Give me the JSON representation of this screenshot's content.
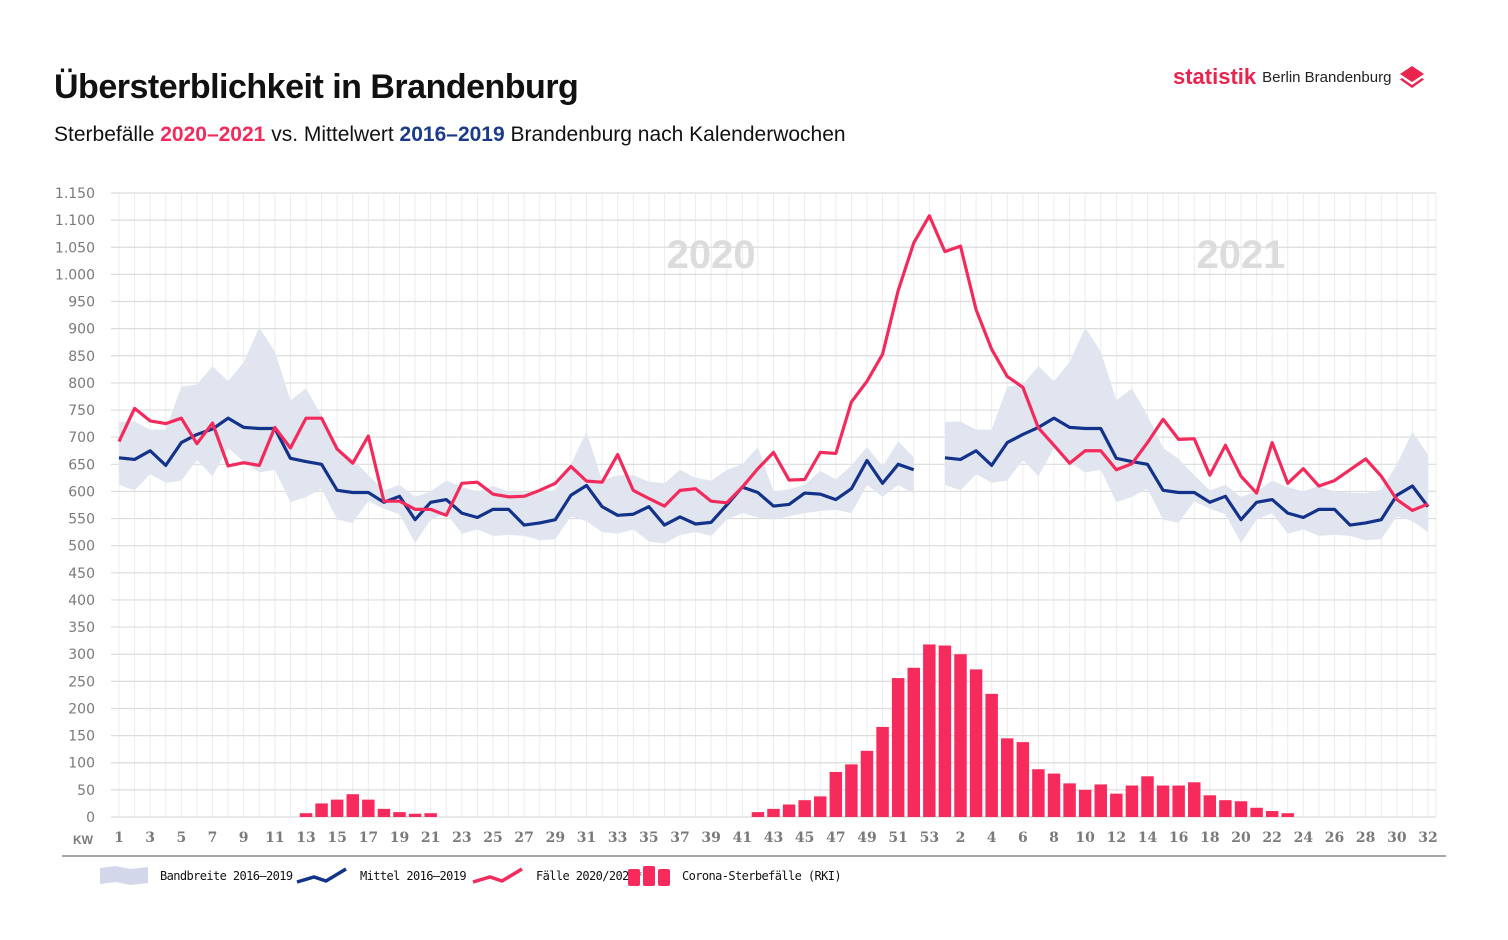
{
  "header": {
    "title": "Übersterblichkeit in Brandenburg",
    "subtitle_pre": "Sterbefälle ",
    "subtitle_years1": "2020–2021",
    "subtitle_mid": " vs. Mittelwert ",
    "subtitle_years2": "2016–2019",
    "subtitle_post": " Brandenburg nach Kalenderwochen"
  },
  "logo": {
    "brand": "statistik",
    "region": "Berlin Brandenburg",
    "icon": "layers-icon"
  },
  "colors": {
    "cases": "#f22b5c",
    "mean": "#13338a",
    "band": "#e1e5f0",
    "bars": "#f72a5c",
    "grid": "#e4e4e4"
  },
  "chart_data": {
    "type": "line",
    "title": "Übersterblichkeit in Brandenburg",
    "xlabel": "KW",
    "ylabel": "",
    "ylim": [
      0,
      1150
    ],
    "yticks": [
      0,
      50,
      100,
      150,
      200,
      250,
      300,
      350,
      400,
      450,
      500,
      550,
      600,
      650,
      700,
      750,
      800,
      850,
      900,
      950,
      1000,
      1050,
      1100,
      1150
    ],
    "ytick_labels": [
      "0",
      "50",
      "100",
      "150",
      "200",
      "250",
      "300",
      "350",
      "400",
      "450",
      "500",
      "550",
      "600",
      "650",
      "700",
      "750",
      "800",
      "850",
      "900",
      "950",
      "1.000",
      "1.050",
      "1.100",
      "1.150"
    ],
    "grid": true,
    "year_annotations": [
      {
        "text": "2020",
        "at_index": 38
      },
      {
        "text": "2021",
        "at_index": 72
      }
    ],
    "x_weeks": [
      1,
      2,
      3,
      4,
      5,
      6,
      7,
      8,
      9,
      10,
      11,
      12,
      13,
      14,
      15,
      16,
      17,
      18,
      19,
      20,
      21,
      22,
      23,
      24,
      25,
      26,
      27,
      28,
      29,
      30,
      31,
      32,
      33,
      34,
      35,
      36,
      37,
      38,
      39,
      40,
      41,
      42,
      43,
      44,
      45,
      46,
      47,
      48,
      49,
      50,
      51,
      52,
      53,
      1,
      2,
      3,
      4,
      5,
      6,
      7,
      8,
      9,
      10,
      11,
      12,
      13,
      14,
      15,
      16,
      17,
      18,
      19,
      20,
      21,
      22,
      23,
      24,
      25,
      26,
      27,
      28,
      29,
      30,
      31,
      32
    ],
    "x_tick_labels": [
      "1",
      "3",
      "5",
      "7",
      "9",
      "11",
      "13",
      "15",
      "17",
      "19",
      "21",
      "23",
      "25",
      "27",
      "29",
      "31",
      "33",
      "35",
      "37",
      "39",
      "41",
      "43",
      "45",
      "47",
      "49",
      "51",
      "53",
      "2",
      "4",
      "6",
      "8",
      "10",
      "12",
      "14",
      "16",
      "18",
      "20",
      "22",
      "24",
      "26",
      "28",
      "30",
      "32"
    ],
    "series": [
      {
        "name": "Fälle 2020/2021*",
        "kind": "line",
        "values": [
          692,
          753,
          730,
          725,
          735,
          688,
          726,
          647,
          653,
          648,
          718,
          680,
          735,
          735,
          678,
          652,
          702,
          582,
          582,
          567,
          567,
          556,
          615,
          617,
          595,
          590,
          591,
          602,
          615,
          646,
          619,
          617,
          668,
          602,
          587,
          573,
          602,
          605,
          582,
          579,
          608,
          642,
          672,
          621,
          622,
          672,
          670,
          765,
          803,
          853,
          970,
          1058,
          1108,
          1042,
          1052,
          935,
          862,
          812,
          792,
          717,
          685,
          652,
          675,
          675,
          640,
          651,
          690,
          733,
          696,
          697,
          630,
          685,
          628,
          597,
          690,
          615,
          642,
          610,
          620,
          640,
          660,
          628,
          585,
          565,
          577
        ]
      },
      {
        "name": "Mittel 2016–2019",
        "kind": "line",
        "values": [
          662,
          659,
          675,
          648,
          690,
          705,
          715,
          735,
          718,
          716,
          716,
          661,
          655,
          650,
          602,
          598,
          598,
          580,
          591,
          548,
          580,
          585,
          560,
          552,
          567,
          567,
          538,
          542,
          548,
          593,
          611,
          572,
          556,
          558,
          572,
          538,
          553,
          540,
          543,
          575,
          608,
          598,
          573,
          576,
          597,
          595,
          585,
          605,
          657,
          615,
          650,
          640,
          null,
          662,
          659,
          675,
          648,
          690,
          705,
          718,
          735,
          718,
          716,
          716,
          661,
          655,
          650,
          602,
          598,
          598,
          580,
          591,
          548,
          580,
          585,
          560,
          552,
          567,
          567,
          538,
          542,
          548,
          593,
          610,
          572
        ]
      },
      {
        "name": "Bandbreite 2016–2019",
        "kind": "band",
        "lower": [
          612,
          602,
          632,
          616,
          620,
          658,
          628,
          680,
          655,
          635,
          640,
          580,
          590,
          605,
          548,
          542,
          582,
          568,
          558,
          505,
          548,
          560,
          522,
          530,
          518,
          520,
          518,
          510,
          512,
          554,
          545,
          525,
          522,
          530,
          508,
          504,
          520,
          525,
          518,
          548,
          560,
          552,
          548,
          554,
          560,
          564,
          566,
          560,
          612,
          590,
          612,
          596,
          null,
          612,
          602,
          632,
          616,
          620,
          658,
          628,
          680,
          655,
          635,
          640,
          580,
          590,
          605,
          548,
          542,
          582,
          568,
          558,
          505,
          548,
          560,
          522,
          530,
          518,
          520,
          518,
          510,
          512,
          554,
          545,
          525
        ],
        "upper": [
          728,
          729,
          714,
          714,
          793,
          797,
          831,
          803,
          838,
          902,
          858,
          768,
          790,
          740,
          680,
          660,
          630,
          602,
          612,
          590,
          600,
          620,
          608,
          600,
          610,
          600,
          598,
          597,
          603,
          650,
          710,
          620,
          630,
          630,
          618,
          615,
          640,
          625,
          620,
          640,
          650,
          682,
          600,
          604,
          612,
          638,
          622,
          648,
          682,
          646,
          692,
          663,
          null,
          728,
          729,
          714,
          714,
          793,
          797,
          831,
          803,
          838,
          902,
          858,
          768,
          790,
          740,
          680,
          660,
          630,
          602,
          612,
          590,
          600,
          620,
          608,
          600,
          610,
          600,
          598,
          597,
          603,
          650,
          710,
          668
        ]
      },
      {
        "name": "Corona-Sterbefälle (RKI)",
        "kind": "bar",
        "values": [
          0,
          0,
          0,
          0,
          0,
          0,
          0,
          0,
          0,
          0,
          0,
          0,
          7,
          25,
          32,
          42,
          32,
          15,
          9,
          6,
          7,
          0,
          0,
          0,
          0,
          0,
          0,
          0,
          0,
          0,
          0,
          0,
          0,
          0,
          0,
          0,
          0,
          0,
          0,
          0,
          0,
          9,
          15,
          23,
          31,
          38,
          83,
          97,
          122,
          166,
          256,
          275,
          318,
          316,
          300,
          272,
          227,
          145,
          138,
          88,
          80,
          62,
          50,
          60,
          43,
          58,
          75,
          58,
          58,
          64,
          40,
          31,
          29,
          17,
          11,
          7,
          0,
          0,
          0,
          0,
          0,
          0,
          0,
          0,
          0
        ]
      }
    ],
    "legend": [
      {
        "label": "Bandbreite 2016–2019",
        "symbol": "band"
      },
      {
        "label": "Mittel 2016–2019",
        "symbol": "line-mean"
      },
      {
        "label": "Fälle 2020/2021*",
        "symbol": "line-cases"
      },
      {
        "label": "Corona-Sterbefälle (RKI)",
        "symbol": "bars"
      }
    ],
    "legend_position": "bottom"
  }
}
